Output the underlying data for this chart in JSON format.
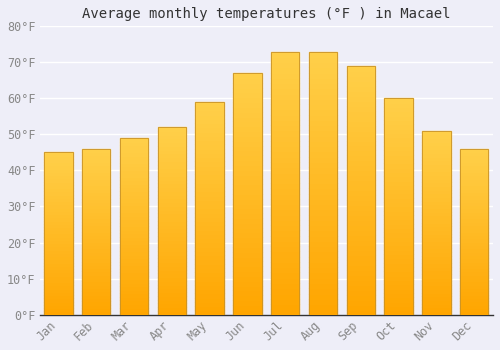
{
  "months": [
    "Jan",
    "Feb",
    "Mar",
    "Apr",
    "May",
    "Jun",
    "Jul",
    "Aug",
    "Sep",
    "Oct",
    "Nov",
    "Dec"
  ],
  "temperatures": [
    45,
    46,
    49,
    52,
    59,
    67,
    73,
    73,
    69,
    60,
    51,
    46
  ],
  "bar_color_top": "#FFD04A",
  "bar_color_bottom": "#FFA500",
  "bar_edge_color": "#C8922A",
  "title": "Average monthly temperatures (°F ) in Macael",
  "ylim": [
    0,
    80
  ],
  "yticks": [
    0,
    10,
    20,
    30,
    40,
    50,
    60,
    70,
    80
  ],
  "ytick_labels": [
    "0°F",
    "10°F",
    "20°F",
    "30°F",
    "40°F",
    "50°F",
    "60°F",
    "70°F",
    "80°F"
  ],
  "background_color": "#EEEEF8",
  "plot_bg_color": "#EEEEF8",
  "grid_color": "#FFFFFF",
  "title_fontsize": 10,
  "tick_fontsize": 8.5,
  "bar_width": 0.75
}
